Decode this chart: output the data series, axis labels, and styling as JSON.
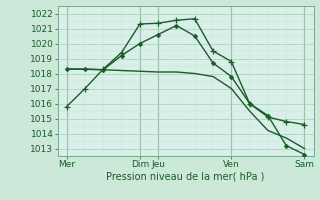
{
  "bg_color": "#cce8d8",
  "plot_bg_color": "#d8f0e8",
  "grid_color": "#aaccbb",
  "grid_minor_color": "#c8e4d8",
  "line_color": "#1a5c28",
  "ylabel_text": "Pression niveau de la mer( hPa )",
  "ylim": [
    1012.5,
    1022.5
  ],
  "yticks": [
    1013,
    1014,
    1015,
    1016,
    1017,
    1018,
    1019,
    1020,
    1021,
    1022
  ],
  "xlim": [
    -0.5,
    13.5
  ],
  "xtick_labels": [
    "Mer",
    "Dim",
    "Jeu",
    "Ven",
    "Sam"
  ],
  "xtick_positions": [
    0,
    4,
    5,
    9,
    13
  ],
  "series1_x": [
    0,
    1,
    2,
    3,
    4,
    5,
    6,
    7,
    8,
    9,
    10,
    11,
    12,
    13
  ],
  "series1_y": [
    1015.8,
    1017.0,
    1018.3,
    1019.4,
    1021.3,
    1021.35,
    1021.55,
    1021.65,
    1019.5,
    1018.8,
    1016.0,
    1015.1,
    1014.8,
    1014.6
  ],
  "series2_x": [
    0,
    1,
    2,
    3,
    4,
    5,
    6,
    7,
    8,
    9,
    10,
    11,
    12,
    13
  ],
  "series2_y": [
    1018.3,
    1018.3,
    1018.25,
    1019.2,
    1020.0,
    1020.6,
    1021.2,
    1020.5,
    1018.7,
    1017.8,
    1016.0,
    1015.2,
    1013.2,
    1012.6
  ],
  "series3_x": [
    0,
    1,
    2,
    3,
    4,
    5,
    6,
    7,
    8,
    9,
    10,
    11,
    12,
    13
  ],
  "series3_y": [
    1018.3,
    1018.28,
    1018.25,
    1018.2,
    1018.15,
    1018.1,
    1018.1,
    1018.0,
    1017.8,
    1017.0,
    1015.5,
    1014.2,
    1013.7,
    1013.0
  ],
  "vline_positions": [
    0,
    4,
    5,
    9,
    13
  ],
  "marker_size": 3,
  "linewidth": 1.0
}
